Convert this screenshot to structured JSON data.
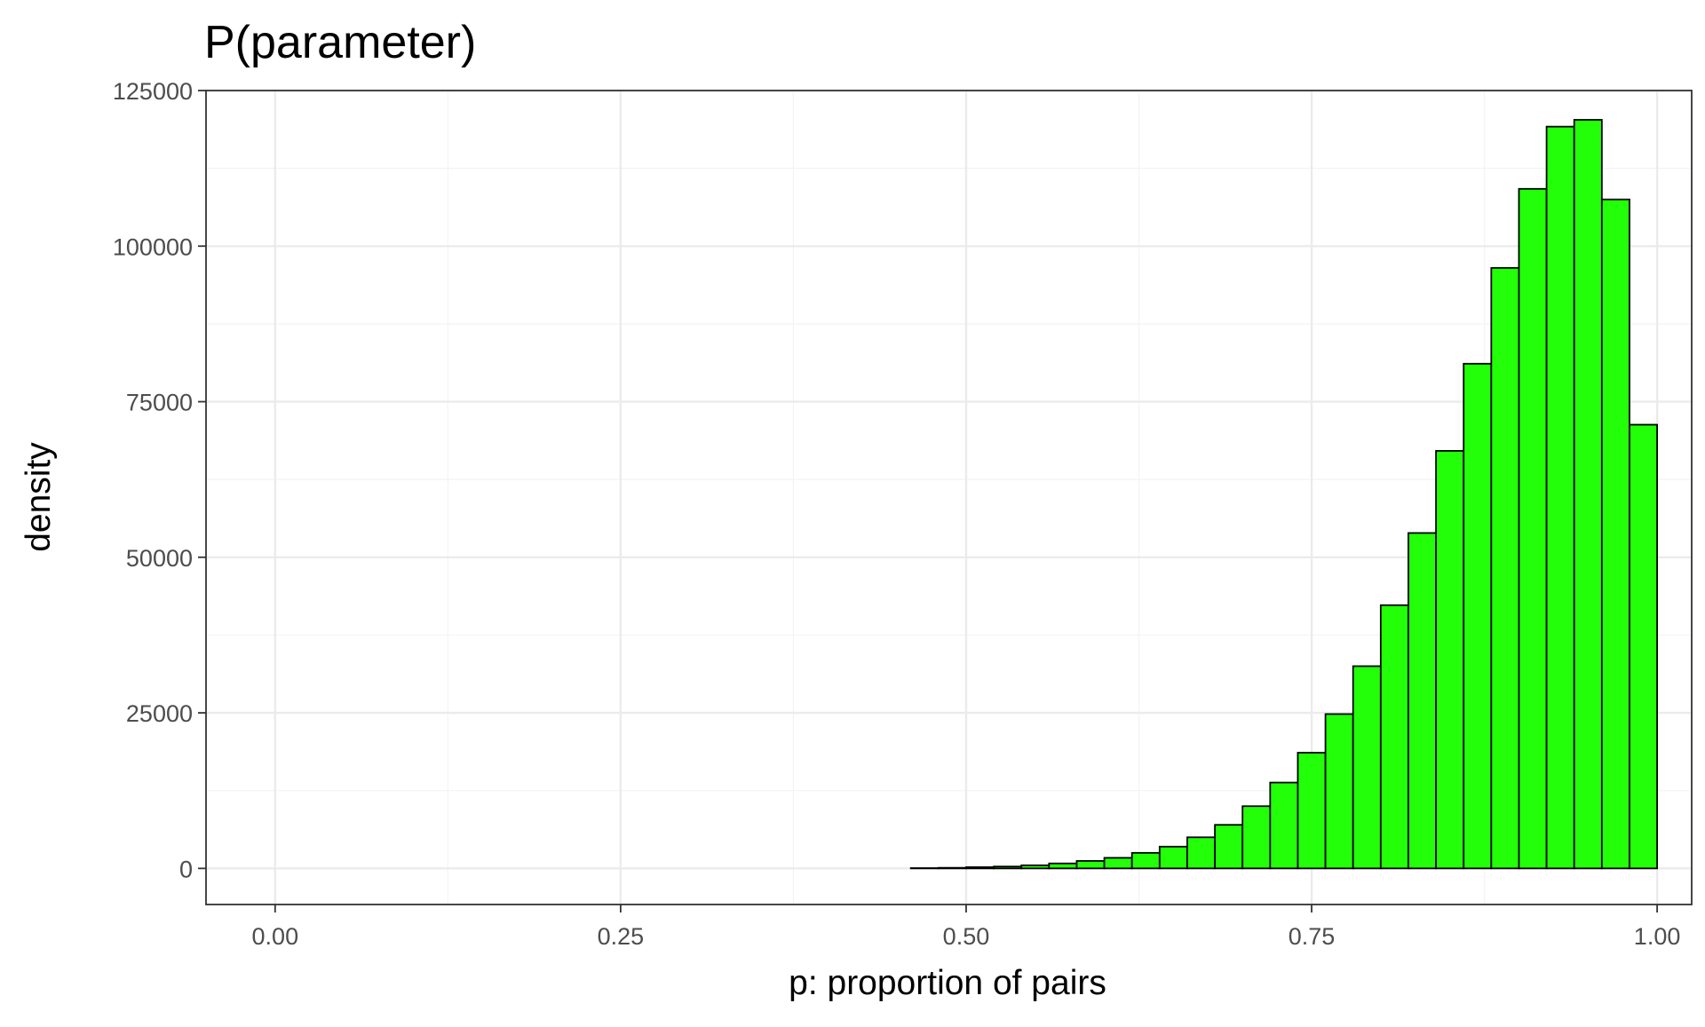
{
  "chart_data": {
    "type": "bar",
    "title": "P(parameter)",
    "xlabel": "p: proportion of pairs",
    "ylabel": "density",
    "xlim": [
      -0.05,
      1.025
    ],
    "ylim": [
      -5800,
      125000
    ],
    "x_ticks": [
      {
        "value": 0.0,
        "label": "0.00"
      },
      {
        "value": 0.25,
        "label": "0.25"
      },
      {
        "value": 0.5,
        "label": "0.50"
      },
      {
        "value": 0.75,
        "label": "0.75"
      },
      {
        "value": 1.0,
        "label": "1.00"
      }
    ],
    "y_ticks": [
      {
        "value": 0,
        "label": "0"
      },
      {
        "value": 25000,
        "label": "25000"
      },
      {
        "value": 50000,
        "label": "50000"
      },
      {
        "value": 75000,
        "label": "75000"
      },
      {
        "value": 100000,
        "label": "100000"
      },
      {
        "value": 125000,
        "label": "125000"
      }
    ],
    "grid": true,
    "bin_start": 0.01,
    "bin_width": 0.02,
    "values": [
      0,
      0,
      0,
      0,
      0,
      0,
      0,
      0,
      0,
      0,
      0,
      0,
      0,
      0,
      0,
      0,
      0,
      0,
      0,
      0,
      0,
      0,
      0,
      50,
      100,
      200,
      300,
      500,
      800,
      1200,
      1700,
      2500,
      3500,
      5000,
      7000,
      10000,
      13800,
      18600,
      24800,
      32500,
      42300,
      53900,
      67100,
      81100,
      96500,
      109200,
      119200,
      120300,
      107500,
      71300
    ]
  },
  "colors": {
    "bar_fill": "#22ff08",
    "bar_stroke": "#000000",
    "grid_major": "#ebebeb",
    "grid_minor": "#f3f3f3",
    "panel_border": "#333333"
  }
}
